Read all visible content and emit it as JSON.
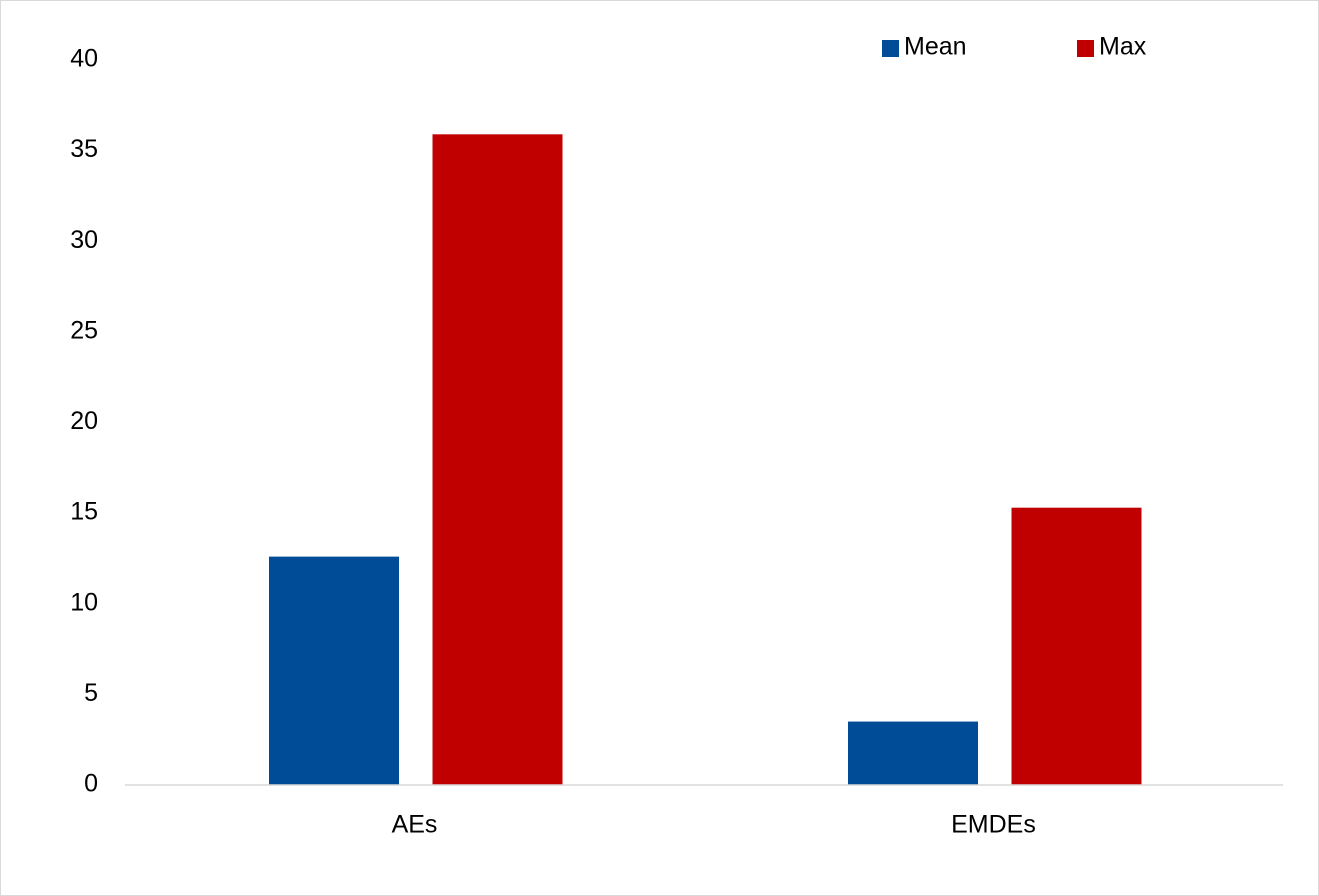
{
  "chart_data": {
    "type": "bar",
    "categories": [
      "AEs",
      "EMDEs"
    ],
    "series": [
      {
        "name": "Mean",
        "color": "#004c97",
        "values": [
          12.6,
          3.5
        ]
      },
      {
        "name": "Max",
        "color": "#c00000",
        "values": [
          35.9,
          15.3
        ]
      }
    ],
    "ylim": [
      0,
      40
    ],
    "yticks": [
      0,
      5,
      10,
      15,
      20,
      25,
      30,
      35,
      40
    ],
    "grid": false,
    "legend": "top-right"
  }
}
